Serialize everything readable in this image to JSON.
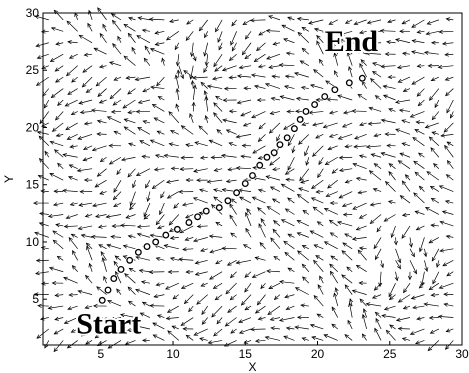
{
  "chart_data": {
    "type": "scatter",
    "title": "",
    "xlabel": "X",
    "ylabel": "Y",
    "xlim": [
      1,
      30
    ],
    "ylim": [
      1,
      30
    ],
    "xticks": [
      5,
      10,
      15,
      20,
      25,
      30
    ],
    "yticks": [
      5,
      10,
      15,
      20,
      25,
      30
    ],
    "grid": false,
    "annotations": [
      {
        "text": "Start",
        "x": 3.3,
        "y": 2.0
      },
      {
        "text": "End",
        "x": 20.5,
        "y": 26.7
      }
    ],
    "series": [
      {
        "marker": "open-circle",
        "x": [
          5.1,
          5.5,
          5.9,
          6.4,
          7.0,
          7.6,
          8.2,
          8.8,
          9.5,
          10.3,
          11.1,
          11.7,
          12.3,
          13.2,
          13.8,
          14.4,
          15.0,
          15.5,
          16.0,
          16.5,
          17.0,
          17.4,
          17.9,
          18.4,
          18.8,
          19.2,
          19.8,
          20.5,
          21.2,
          22.2,
          23.1
        ],
        "y": [
          4.9,
          5.8,
          6.8,
          7.6,
          8.4,
          9.1,
          9.6,
          10.0,
          10.6,
          11.1,
          11.7,
          12.2,
          12.7,
          13.0,
          13.6,
          14.3,
          15.1,
          15.8,
          16.7,
          17.4,
          17.8,
          18.5,
          19.1,
          19.9,
          20.7,
          21.4,
          22.0,
          22.7,
          23.3,
          23.9,
          24.3
        ]
      }
    ],
    "vector_field": {
      "description_free": true,
      "xrange": [
        1,
        30
      ],
      "yrange": [
        1,
        30
      ],
      "spacing": 1
    }
  }
}
